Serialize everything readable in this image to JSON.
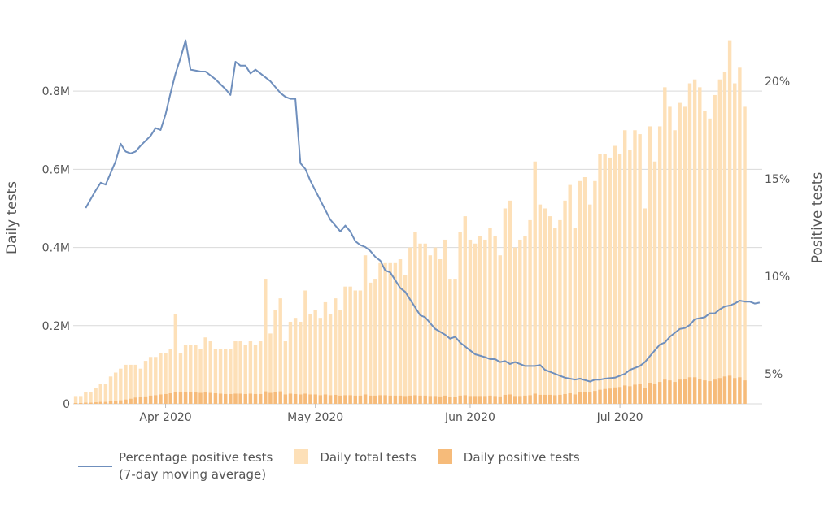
{
  "chart_data": {
    "type": "bar+line",
    "title": "",
    "xlabel": "",
    "ylabel_left": "Daily tests",
    "ylabel_right": "Positive tests",
    "x_start": "2020-03-14",
    "x_end": "2020-07-29",
    "x_ticks": [
      {
        "date": "2020-04-01",
        "label": "Apr 2020"
      },
      {
        "date": "2020-05-01",
        "label": "May 2020"
      },
      {
        "date": "2020-06-01",
        "label": "Jun 2020"
      },
      {
        "date": "2020-07-01",
        "label": "Jul 2020"
      }
    ],
    "ylim_left": [
      0,
      0.95
    ],
    "yticks_left": [
      {
        "value": 0,
        "label": "0"
      },
      {
        "value": 0.2,
        "label": "0.2M"
      },
      {
        "value": 0.4,
        "label": "0.4M"
      },
      {
        "value": 0.6,
        "label": "0.6M"
      },
      {
        "value": 0.8,
        "label": "0.8M"
      }
    ],
    "ylim_right": [
      3.46,
      22.5
    ],
    "yticks_right": [
      {
        "value": 5,
        "label": "5%"
      },
      {
        "value": 10,
        "label": "10%"
      },
      {
        "value": 15,
        "label": "15%"
      },
      {
        "value": 20,
        "label": "20%"
      }
    ],
    "gridlines": true,
    "legend_position": "bottom",
    "series": [
      {
        "name": "Daily total tests",
        "type": "bar",
        "axis": "left",
        "unit": "M",
        "color": "#fde0b8",
        "values": [
          0.02,
          0.02,
          0.03,
          0.03,
          0.04,
          0.05,
          0.05,
          0.07,
          0.08,
          0.09,
          0.1,
          0.1,
          0.1,
          0.09,
          0.11,
          0.12,
          0.12,
          0.13,
          0.13,
          0.14,
          0.23,
          0.13,
          0.15,
          0.15,
          0.15,
          0.14,
          0.17,
          0.16,
          0.14,
          0.14,
          0.14,
          0.14,
          0.16,
          0.16,
          0.15,
          0.16,
          0.15,
          0.16,
          0.32,
          0.18,
          0.24,
          0.27,
          0.16,
          0.21,
          0.22,
          0.21,
          0.29,
          0.23,
          0.24,
          0.22,
          0.26,
          0.23,
          0.27,
          0.24,
          0.3,
          0.3,
          0.29,
          0.29,
          0.38,
          0.31,
          0.32,
          0.36,
          0.36,
          0.36,
          0.36,
          0.37,
          0.33,
          0.4,
          0.44,
          0.41,
          0.41,
          0.38,
          0.4,
          0.37,
          0.42,
          0.32,
          0.32,
          0.44,
          0.48,
          0.42,
          0.41,
          0.43,
          0.42,
          0.45,
          0.43,
          0.38,
          0.5,
          0.52,
          0.4,
          0.42,
          0.43,
          0.47,
          0.62,
          0.51,
          0.5,
          0.48,
          0.45,
          0.47,
          0.52,
          0.56,
          0.45,
          0.57,
          0.58,
          0.51,
          0.57,
          0.64,
          0.64,
          0.63,
          0.66,
          0.64,
          0.7,
          0.65,
          0.7,
          0.69,
          0.5,
          0.71,
          0.62,
          0.71,
          0.81,
          0.76,
          0.7,
          0.77,
          0.76,
          0.82,
          0.83,
          0.81,
          0.75,
          0.73,
          0.79,
          0.83,
          0.85,
          0.93,
          0.82,
          0.86,
          0.76
        ]
      },
      {
        "name": "Daily positive tests",
        "type": "bar",
        "axis": "left",
        "unit": "M",
        "color": "#f6bb7a",
        "values": [
          0.002,
          0.002,
          0.003,
          0.003,
          0.004,
          0.005,
          0.005,
          0.007,
          0.008,
          0.009,
          0.011,
          0.013,
          0.016,
          0.017,
          0.019,
          0.021,
          0.022,
          0.024,
          0.025,
          0.027,
          0.03,
          0.029,
          0.03,
          0.03,
          0.029,
          0.028,
          0.029,
          0.028,
          0.027,
          0.026,
          0.025,
          0.025,
          0.026,
          0.026,
          0.025,
          0.026,
          0.025,
          0.025,
          0.032,
          0.028,
          0.03,
          0.032,
          0.024,
          0.026,
          0.025,
          0.024,
          0.026,
          0.024,
          0.024,
          0.022,
          0.024,
          0.022,
          0.023,
          0.021,
          0.022,
          0.022,
          0.021,
          0.021,
          0.024,
          0.021,
          0.021,
          0.022,
          0.022,
          0.021,
          0.021,
          0.021,
          0.02,
          0.021,
          0.022,
          0.021,
          0.021,
          0.02,
          0.02,
          0.019,
          0.021,
          0.018,
          0.018,
          0.021,
          0.022,
          0.02,
          0.02,
          0.02,
          0.02,
          0.021,
          0.02,
          0.019,
          0.023,
          0.024,
          0.02,
          0.02,
          0.021,
          0.022,
          0.026,
          0.023,
          0.023,
          0.023,
          0.022,
          0.023,
          0.025,
          0.027,
          0.024,
          0.029,
          0.03,
          0.029,
          0.033,
          0.036,
          0.038,
          0.039,
          0.042,
          0.043,
          0.047,
          0.045,
          0.049,
          0.05,
          0.04,
          0.054,
          0.05,
          0.056,
          0.062,
          0.06,
          0.056,
          0.062,
          0.064,
          0.068,
          0.068,
          0.064,
          0.06,
          0.058,
          0.062,
          0.066,
          0.07,
          0.072,
          0.066,
          0.068,
          0.06
        ]
      },
      {
        "name": "Percentage positive tests\n(7-day moving average)",
        "type": "line",
        "axis": "right",
        "unit": "%",
        "color": "#6f8fbd",
        "points": [
          [
            "2020-03-16",
            13.5
          ],
          [
            "2020-03-18",
            14.4
          ],
          [
            "2020-03-19",
            14.8
          ],
          [
            "2020-03-20",
            14.7
          ],
          [
            "2020-03-22",
            15.9
          ],
          [
            "2020-03-23",
            16.8
          ],
          [
            "2020-03-24",
            16.4
          ],
          [
            "2020-03-25",
            16.3
          ],
          [
            "2020-03-26",
            16.4
          ],
          [
            "2020-03-27",
            16.7
          ],
          [
            "2020-03-29",
            17.2
          ],
          [
            "2020-03-30",
            17.6
          ],
          [
            "2020-03-31",
            17.5
          ],
          [
            "2020-04-01",
            18.3
          ],
          [
            "2020-04-02",
            19.4
          ],
          [
            "2020-04-03",
            20.4
          ],
          [
            "2020-04-04",
            21.2
          ],
          [
            "2020-04-05",
            22.1
          ],
          [
            "2020-04-06",
            20.6
          ],
          [
            "2020-04-08",
            20.5
          ],
          [
            "2020-04-09",
            20.5
          ],
          [
            "2020-04-11",
            20.1
          ],
          [
            "2020-04-13",
            19.6
          ],
          [
            "2020-04-14",
            19.3
          ],
          [
            "2020-04-15",
            21.0
          ],
          [
            "2020-04-16",
            20.8
          ],
          [
            "2020-04-17",
            20.8
          ],
          [
            "2020-04-18",
            20.4
          ],
          [
            "2020-04-19",
            20.6
          ],
          [
            "2020-04-21",
            20.2
          ],
          [
            "2020-04-22",
            20.0
          ],
          [
            "2020-04-24",
            19.4
          ],
          [
            "2020-04-25",
            19.2
          ],
          [
            "2020-04-26",
            19.1
          ],
          [
            "2020-04-27",
            19.1
          ],
          [
            "2020-04-28",
            15.8
          ],
          [
            "2020-04-29",
            15.5
          ],
          [
            "2020-04-30",
            14.9
          ],
          [
            "2020-05-02",
            13.9
          ],
          [
            "2020-05-04",
            12.9
          ],
          [
            "2020-05-06",
            12.3
          ],
          [
            "2020-05-07",
            12.6
          ],
          [
            "2020-05-08",
            12.3
          ],
          [
            "2020-05-09",
            11.8
          ],
          [
            "2020-05-10",
            11.6
          ],
          [
            "2020-05-11",
            11.5
          ],
          [
            "2020-05-12",
            11.3
          ],
          [
            "2020-05-13",
            11.0
          ],
          [
            "2020-05-14",
            10.8
          ],
          [
            "2020-05-15",
            10.3
          ],
          [
            "2020-05-16",
            10.2
          ],
          [
            "2020-05-17",
            9.8
          ],
          [
            "2020-05-18",
            9.4
          ],
          [
            "2020-05-19",
            9.2
          ],
          [
            "2020-05-20",
            8.8
          ],
          [
            "2020-05-21",
            8.4
          ],
          [
            "2020-05-22",
            8.0
          ],
          [
            "2020-05-23",
            7.9
          ],
          [
            "2020-05-24",
            7.6
          ],
          [
            "2020-05-25",
            7.3
          ],
          [
            "2020-05-27",
            7.0
          ],
          [
            "2020-05-28",
            6.8
          ],
          [
            "2020-05-29",
            6.9
          ],
          [
            "2020-05-30",
            6.6
          ],
          [
            "2020-05-31",
            6.4
          ],
          [
            "2020-06-01",
            6.2
          ],
          [
            "2020-06-02",
            6.0
          ],
          [
            "2020-06-04",
            5.85
          ],
          [
            "2020-06-05",
            5.75
          ],
          [
            "2020-06-06",
            5.75
          ],
          [
            "2020-06-07",
            5.6
          ],
          [
            "2020-06-08",
            5.65
          ],
          [
            "2020-06-09",
            5.5
          ],
          [
            "2020-06-10",
            5.6
          ],
          [
            "2020-06-12",
            5.4
          ],
          [
            "2020-06-14",
            5.4
          ],
          [
            "2020-06-15",
            5.45
          ],
          [
            "2020-06-16",
            5.2
          ],
          [
            "2020-06-18",
            5.0
          ],
          [
            "2020-06-19",
            4.9
          ],
          [
            "2020-06-20",
            4.8
          ],
          [
            "2020-06-21",
            4.75
          ],
          [
            "2020-06-22",
            4.7
          ],
          [
            "2020-06-23",
            4.75
          ],
          [
            "2020-06-25",
            4.6
          ],
          [
            "2020-06-26",
            4.7
          ],
          [
            "2020-06-27",
            4.7
          ],
          [
            "2020-06-28",
            4.75
          ],
          [
            "2020-06-30",
            4.8
          ],
          [
            "2020-07-01",
            4.9
          ],
          [
            "2020-07-02",
            5.0
          ],
          [
            "2020-07-03",
            5.2
          ],
          [
            "2020-07-04",
            5.3
          ],
          [
            "2020-07-05",
            5.4
          ],
          [
            "2020-07-06",
            5.6
          ],
          [
            "2020-07-07",
            5.9
          ],
          [
            "2020-07-08",
            6.2
          ],
          [
            "2020-07-09",
            6.5
          ],
          [
            "2020-07-10",
            6.6
          ],
          [
            "2020-07-11",
            6.9
          ],
          [
            "2020-07-12",
            7.1
          ],
          [
            "2020-07-13",
            7.3
          ],
          [
            "2020-07-14",
            7.35
          ],
          [
            "2020-07-15",
            7.5
          ],
          [
            "2020-07-16",
            7.8
          ],
          [
            "2020-07-17",
            7.85
          ],
          [
            "2020-07-18",
            7.9
          ],
          [
            "2020-07-19",
            8.1
          ],
          [
            "2020-07-20",
            8.1
          ],
          [
            "2020-07-21",
            8.3
          ],
          [
            "2020-07-22",
            8.45
          ],
          [
            "2020-07-23",
            8.5
          ],
          [
            "2020-07-24",
            8.6
          ],
          [
            "2020-07-25",
            8.75
          ],
          [
            "2020-07-26",
            8.7
          ],
          [
            "2020-07-27",
            8.7
          ],
          [
            "2020-07-28",
            8.6
          ],
          [
            "2020-07-29",
            8.65
          ]
        ]
      }
    ]
  }
}
